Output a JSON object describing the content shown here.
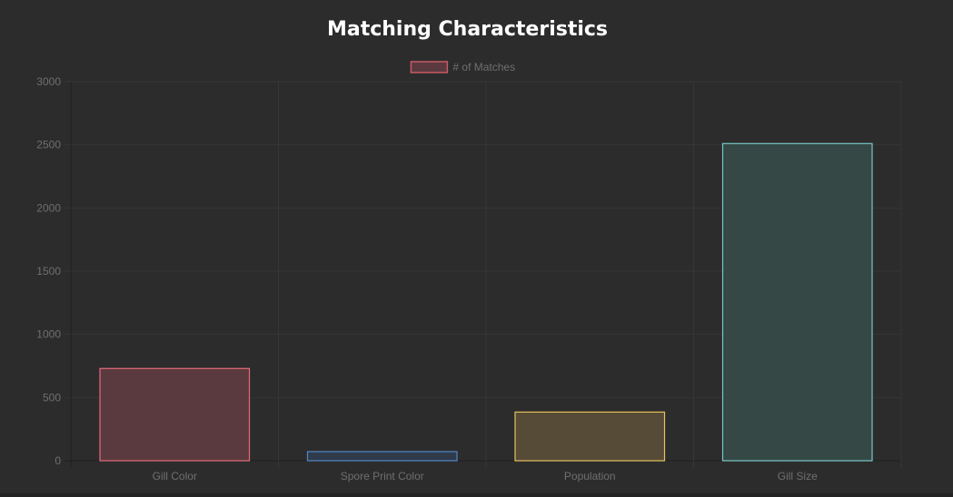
{
  "chart_data": {
    "type": "bar",
    "title": "Matching Characteristics",
    "xlabel": "",
    "ylabel": "",
    "legend": {
      "position": "top",
      "entries": [
        "# of Matches"
      ]
    },
    "categories": [
      "Gill Color",
      "Spore Print Color",
      "Population",
      "Gill Size"
    ],
    "series": [
      {
        "name": "# of Matches",
        "values": [
          730,
          72,
          385,
          2510
        ]
      }
    ],
    "ylim": [
      0,
      3000
    ],
    "yticks": [
      0,
      500,
      1000,
      1500,
      2000,
      2500,
      3000
    ],
    "grid": true,
    "colors": {
      "borders": [
        "#e56b79",
        "#4f86c6",
        "#e6c25e",
        "#78c6c8"
      ],
      "fills": [
        "#5a3a3f",
        "#2f3a4a",
        "#554b36",
        "#364846"
      ],
      "legend_border": "#c85a67",
      "legend_fill": "#5a3a3f",
      "grid": "#363636",
      "axis": "#1f1f1f",
      "tick_text": "#6f6f6f"
    }
  }
}
